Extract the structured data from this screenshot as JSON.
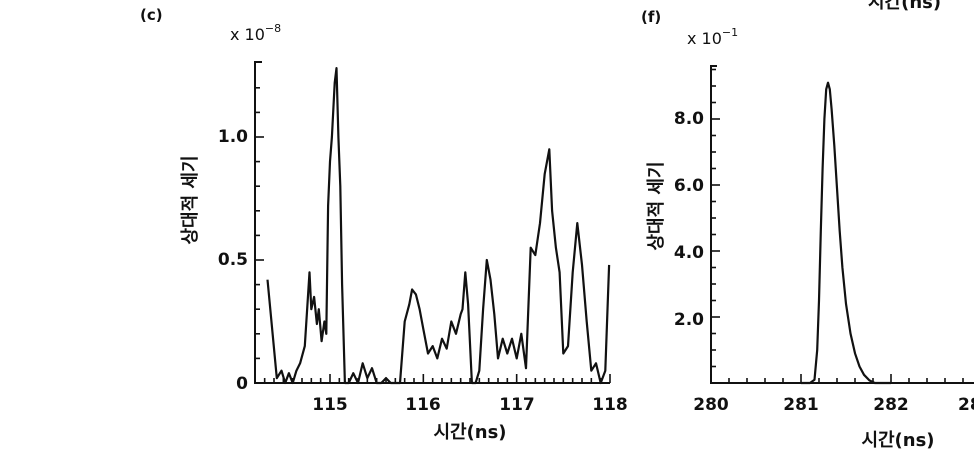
{
  "chart_data": [
    {
      "panel_label": "(c)",
      "type": "line",
      "multiplier": "x 10",
      "multiplier_exponent": "−8",
      "xlabel": "시간(ns)",
      "ylabel": "상대적 세기",
      "xlim": [
        114.2,
        118
      ],
      "ylim": [
        0,
        1.3
      ],
      "x_ticks": [
        "115",
        "116",
        "117",
        "118"
      ],
      "y_ticks": [
        "0",
        "0.5",
        "1.0"
      ],
      "series": [
        {
          "x": [
            114.33,
            114.43,
            114.48,
            114.52,
            114.56,
            114.6,
            114.64,
            114.68,
            114.73,
            114.78,
            114.8,
            114.83,
            114.86,
            114.88,
            114.91,
            114.94,
            114.96,
            114.98,
            115.0,
            115.02,
            115.05,
            115.07,
            115.09,
            115.11,
            115.13,
            115.16,
            115.2,
            115.25,
            115.3,
            115.35,
            115.4,
            115.45,
            115.5,
            115.55,
            115.6,
            115.65,
            115.7,
            115.75,
            115.8,
            115.85,
            115.88,
            115.92,
            115.96,
            116.0,
            116.05,
            116.1,
            116.15,
            116.2,
            116.25,
            116.3,
            116.35,
            116.4,
            116.42,
            116.45,
            116.48,
            116.52,
            116.56,
            116.6,
            116.64,
            116.68,
            116.72,
            116.76,
            116.8,
            116.85,
            116.9,
            116.95,
            117.0,
            117.05,
            117.1,
            117.15,
            117.2,
            117.25,
            117.3,
            117.35,
            117.38,
            117.42,
            117.46,
            117.5,
            117.55,
            117.6,
            117.65,
            117.7,
            117.75,
            117.8,
            117.85,
            117.9,
            117.95,
            117.99
          ],
          "values": [
            0.42,
            0.02,
            0.05,
            0.0,
            0.04,
            0.0,
            0.05,
            0.08,
            0.15,
            0.45,
            0.3,
            0.35,
            0.24,
            0.3,
            0.17,
            0.25,
            0.2,
            0.72,
            0.9,
            1.0,
            1.22,
            1.28,
            1.0,
            0.8,
            0.4,
            0.0,
            0.0,
            0.04,
            0.0,
            0.08,
            0.02,
            0.06,
            0.0,
            0.0,
            0.02,
            0.0,
            0.0,
            0.0,
            0.25,
            0.32,
            0.38,
            0.36,
            0.3,
            0.22,
            0.12,
            0.15,
            0.1,
            0.18,
            0.14,
            0.25,
            0.2,
            0.28,
            0.3,
            0.45,
            0.32,
            0.0,
            0.0,
            0.05,
            0.3,
            0.5,
            0.42,
            0.28,
            0.1,
            0.18,
            0.12,
            0.18,
            0.1,
            0.2,
            0.06,
            0.55,
            0.52,
            0.65,
            0.85,
            0.95,
            0.7,
            0.55,
            0.45,
            0.12,
            0.15,
            0.45,
            0.65,
            0.48,
            0.25,
            0.05,
            0.08,
            0.0,
            0.05,
            0.48
          ]
        }
      ]
    },
    {
      "panel_label": "(f)",
      "type": "line",
      "multiplier": "x 10",
      "multiplier_exponent": "−1",
      "xlabel": "시간(ns)",
      "ylabel": "상대적 세기",
      "xlim": [
        280,
        283
      ],
      "ylim": [
        0,
        9.8
      ],
      "x_ticks": [
        "280",
        "281",
        "282",
        "28"
      ],
      "y_ticks": [
        "2.0",
        "4.0",
        "6.0",
        "8.0"
      ],
      "series": [
        {
          "x": [
            281.0,
            281.1,
            281.15,
            281.18,
            281.2,
            281.22,
            281.24,
            281.26,
            281.28,
            281.3,
            281.32,
            281.34,
            281.37,
            281.4,
            281.43,
            281.46,
            281.5,
            281.55,
            281.6,
            281.65,
            281.7,
            281.76,
            281.82,
            282.0
          ],
          "values": [
            0.0,
            0.0,
            0.1,
            1.0,
            2.5,
            4.6,
            6.5,
            8.0,
            8.9,
            9.1,
            8.9,
            8.3,
            7.2,
            5.9,
            4.6,
            3.5,
            2.4,
            1.5,
            0.9,
            0.5,
            0.25,
            0.08,
            0.0,
            0.0
          ]
        }
      ]
    }
  ],
  "top_right_fragment": "시간(ns)"
}
